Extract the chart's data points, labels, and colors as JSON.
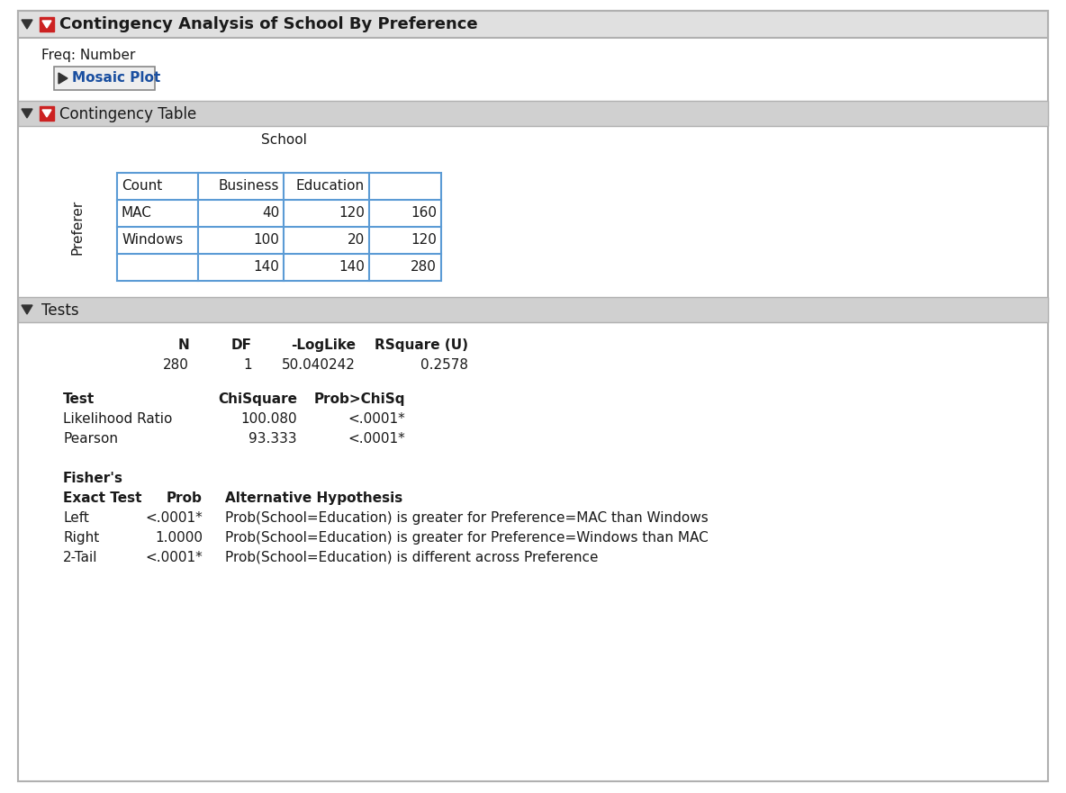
{
  "title_main": "Contingency Analysis of School By Preference",
  "freq_label": "Freq: Number",
  "mosaic_btn": "Mosaic Plot",
  "contingency_table_label": "Contingency Table",
  "tests_label": "Tests",
  "school_header": "School",
  "table_col_headers": [
    "Count",
    "Business",
    "Education",
    ""
  ],
  "table_rows": [
    [
      "MAC",
      "40",
      "120",
      "160"
    ],
    [
      "Windows",
      "100",
      "20",
      "120"
    ],
    [
      "",
      "140",
      "140",
      "280"
    ]
  ],
  "row_label": "Preferer",
  "stats_headers": [
    "N",
    "DF",
    "-LogLike",
    "RSquare (U)"
  ],
  "stats_values": [
    "280",
    "1",
    "50.040242",
    "0.2578"
  ],
  "test_headers": [
    "Test",
    "ChiSquare",
    "Prob>ChiSq"
  ],
  "test_rows": [
    [
      "Likelihood Ratio",
      "100.080",
      "<.0001*"
    ],
    [
      "Pearson",
      "93.333",
      "<.0001*"
    ]
  ],
  "fishers_label": "Fisher's",
  "exact_test_label": "Exact Test",
  "exact_rows": [
    [
      "Left",
      "<.0001*",
      "Prob(School=Education) is greater for Preference=MAC than Windows"
    ],
    [
      "Right",
      "1.0000",
      "Prob(School=Education) is greater for Preference=Windows than MAC"
    ],
    [
      "2-Tail",
      "<.0001*",
      "Prob(School=Education) is different across Preference"
    ]
  ],
  "white": "#ffffff",
  "blue_border": "#5b9bd5",
  "panel_bg": "#f0f0f0",
  "title_bar_bg": "#e0e0e0",
  "section_bar_bg": "#d0d0d0",
  "outer_border": "#aaaaaa",
  "text_dark": "#1a1a1a",
  "blue_text": "#1a4fa0",
  "red_icon": "#cc2222"
}
